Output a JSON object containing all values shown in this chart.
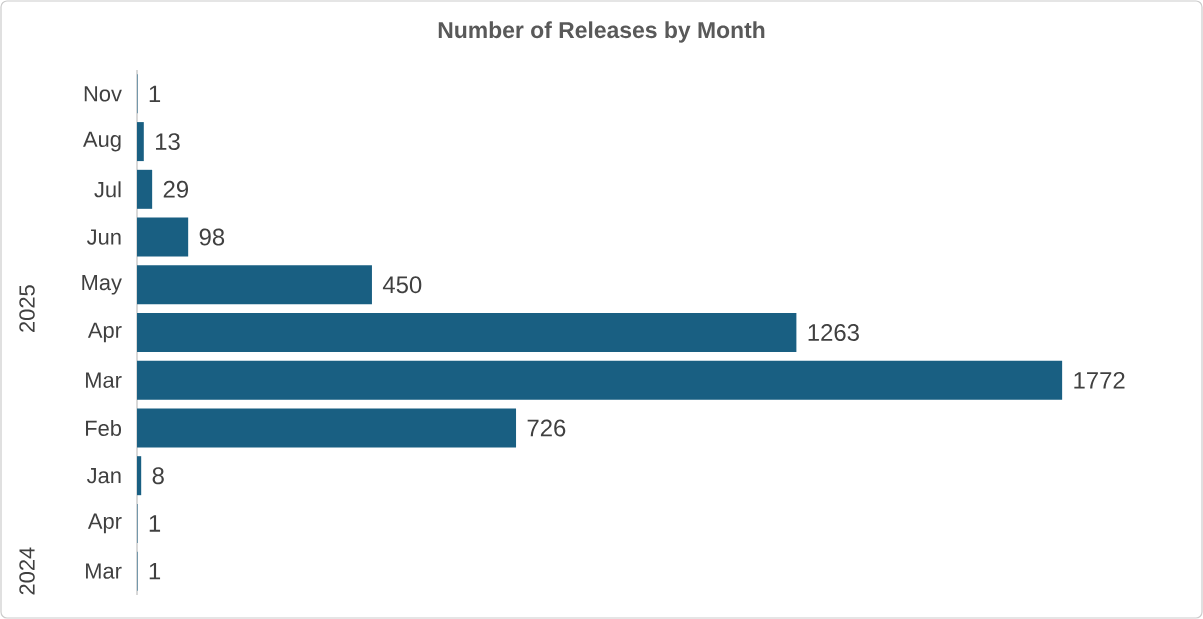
{
  "chart_data": {
    "type": "bar",
    "orientation": "horizontal",
    "title": "Number of Releases by Month",
    "categories": [
      "Nov",
      "Aug",
      "Jul",
      "Jun",
      "May",
      "Apr",
      "Mar",
      "Feb",
      "Jan",
      "Apr",
      "Mar"
    ],
    "values": [
      1,
      13,
      29,
      98,
      450,
      1263,
      1772,
      726,
      8,
      1,
      1
    ],
    "color": "#195f82",
    "data_labels": true,
    "annotations": [
      "2025",
      "2024"
    ]
  }
}
